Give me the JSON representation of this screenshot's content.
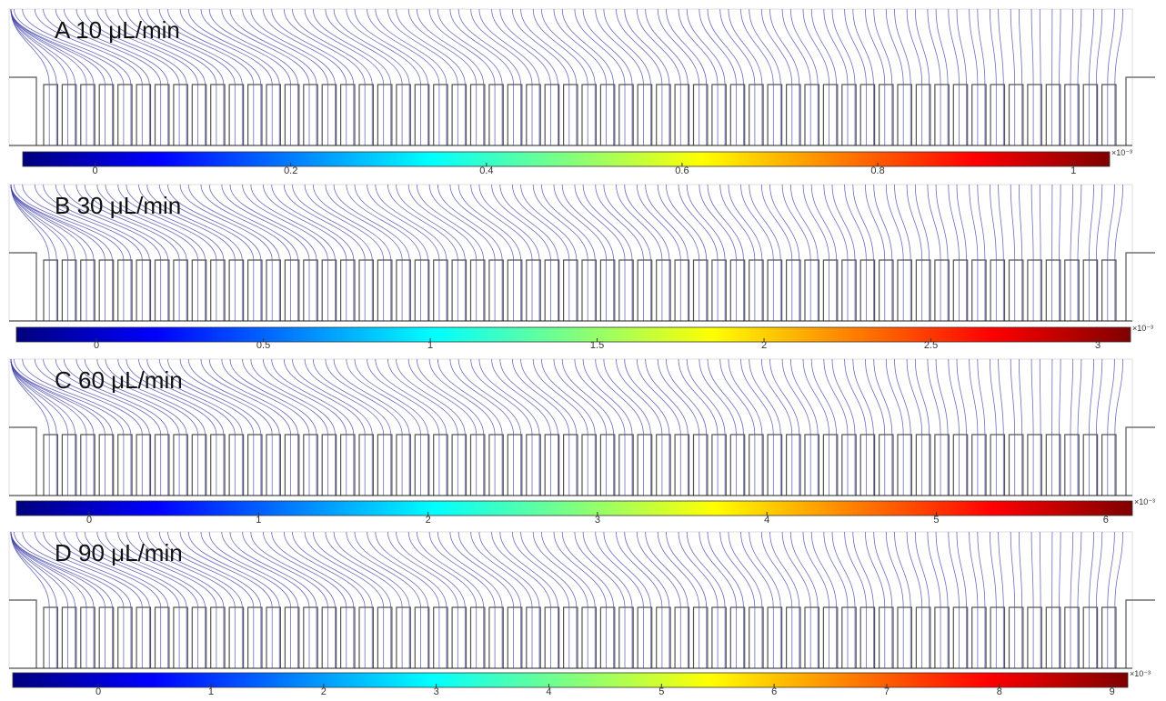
{
  "panels": [
    {
      "label": "A  10 μL/min",
      "colorbar": {
        "lim": [
          -0.074,
          1.037
        ],
        "ticks": [
          0,
          0.2,
          0.4,
          0.6,
          0.8,
          1
        ],
        "multiplier": "×10⁻³"
      }
    },
    {
      "label": "B  30 μL/min",
      "colorbar": {
        "lim": [
          -0.24,
          3.098
        ],
        "ticks": [
          0,
          0.5,
          1,
          1.5,
          2,
          2.5,
          3
        ],
        "multiplier": "×10⁻³"
      }
    },
    {
      "label": "C  60 μL/min",
      "colorbar": {
        "lim": [
          -0.43,
          6.157
        ],
        "ticks": [
          0,
          1,
          2,
          3,
          4,
          5,
          6
        ],
        "multiplier": "×10⁻³"
      }
    },
    {
      "label": "D  90 μL/min",
      "colorbar": {
        "lim": [
          -0.76,
          9.14
        ],
        "ticks": [
          0,
          1,
          2,
          3,
          4,
          5,
          6,
          7,
          8,
          9
        ],
        "multiplier": "×10⁻³"
      }
    }
  ]
}
